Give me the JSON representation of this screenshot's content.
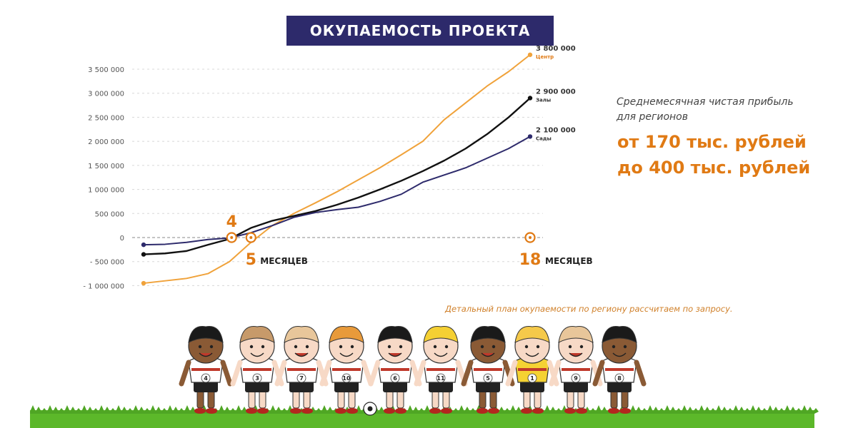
{
  "title": "ОКУПАЕМОСТЬ ПРОЕКТА",
  "side_note": {
    "line1": "Среднемесячная чистая прибыль",
    "line2": "для регионов",
    "profit_line1": "от 170 тыс. рублей",
    "profit_line2": "до 400 тыс. рублей"
  },
  "footnote": "Детальный план окупаемости по региону рассчитаем по запросу.",
  "colors": {
    "title_bg": "#2d2a6b",
    "accent_orange": "#e07a14",
    "series_center": "#f0a23a",
    "series_halls": "#111111",
    "series_gardens": "#2d2a6b",
    "grass": "#5cb82a"
  },
  "chart_data": {
    "type": "line",
    "title": "",
    "xlabel": "",
    "ylabel": "",
    "x": [
      0,
      1,
      2,
      3,
      4,
      5,
      6,
      7,
      8,
      9,
      10,
      11,
      12,
      13,
      14,
      15,
      16,
      17,
      18
    ],
    "ylim": [
      -1000000,
      3500000
    ],
    "y_ticks": [
      "3 500 000",
      "3 000 000",
      "2 500 000",
      "2 000 000",
      "1 500 000",
      "1 000 000",
      "500 000",
      "0",
      "- 500 000",
      "- 1 000 000"
    ],
    "y_tick_values": [
      3500000,
      3000000,
      2500000,
      2000000,
      1500000,
      1000000,
      500000,
      0,
      -500000,
      -1000000
    ],
    "grid": true,
    "series": [
      {
        "name": "Центр",
        "end_label": "3 800 000",
        "values": [
          -950000,
          -900000,
          -850000,
          -750000,
          -500000,
          -100000,
          250000,
          500000,
          720000,
          950000,
          1200000,
          1450000,
          1720000,
          2000000,
          2450000,
          2800000,
          3150000,
          3450000,
          3800000
        ]
      },
      {
        "name": "Залы",
        "end_label": "2 900 000",
        "values": [
          -350000,
          -330000,
          -280000,
          -150000,
          -30000,
          200000,
          350000,
          450000,
          550000,
          680000,
          830000,
          1000000,
          1180000,
          1380000,
          1600000,
          1850000,
          2150000,
          2500000,
          2900000
        ]
      },
      {
        "name": "Сады",
        "end_label": "2 100 000",
        "values": [
          -150000,
          -140000,
          -100000,
          -40000,
          -10000,
          100000,
          250000,
          420000,
          520000,
          580000,
          630000,
          750000,
          900000,
          1150000,
          1300000,
          1450000,
          1650000,
          1850000,
          2100000
        ]
      }
    ],
    "markers": [
      {
        "x": 4,
        "label": "4",
        "unit": ""
      },
      {
        "x": 5,
        "label": "5",
        "unit": "МЕСЯЦЕВ"
      },
      {
        "x": 18,
        "label": "18",
        "unit": "МЕСЯЦЕВ"
      }
    ]
  },
  "kids": {
    "numbers": [
      "4",
      "3",
      "7",
      "10",
      "6",
      "11",
      "5",
      "1",
      "9",
      "8"
    ],
    "hair_colors": [
      "#1a1a1a",
      "#c79a6a",
      "#e8c69a",
      "#e89a3a",
      "#1a1a1a",
      "#f5d033",
      "#1a1a1a",
      "#f5c94a",
      "#e8c69a",
      "#1a1a1a"
    ],
    "skin_colors": [
      "#8a5a35",
      "#f7d9c6",
      "#f7d9c6",
      "#f7d9c6",
      "#f7d9c6",
      "#f7d9c6",
      "#8a5a35",
      "#f7d9c6",
      "#f7d9c6",
      "#8a5a35"
    ]
  }
}
